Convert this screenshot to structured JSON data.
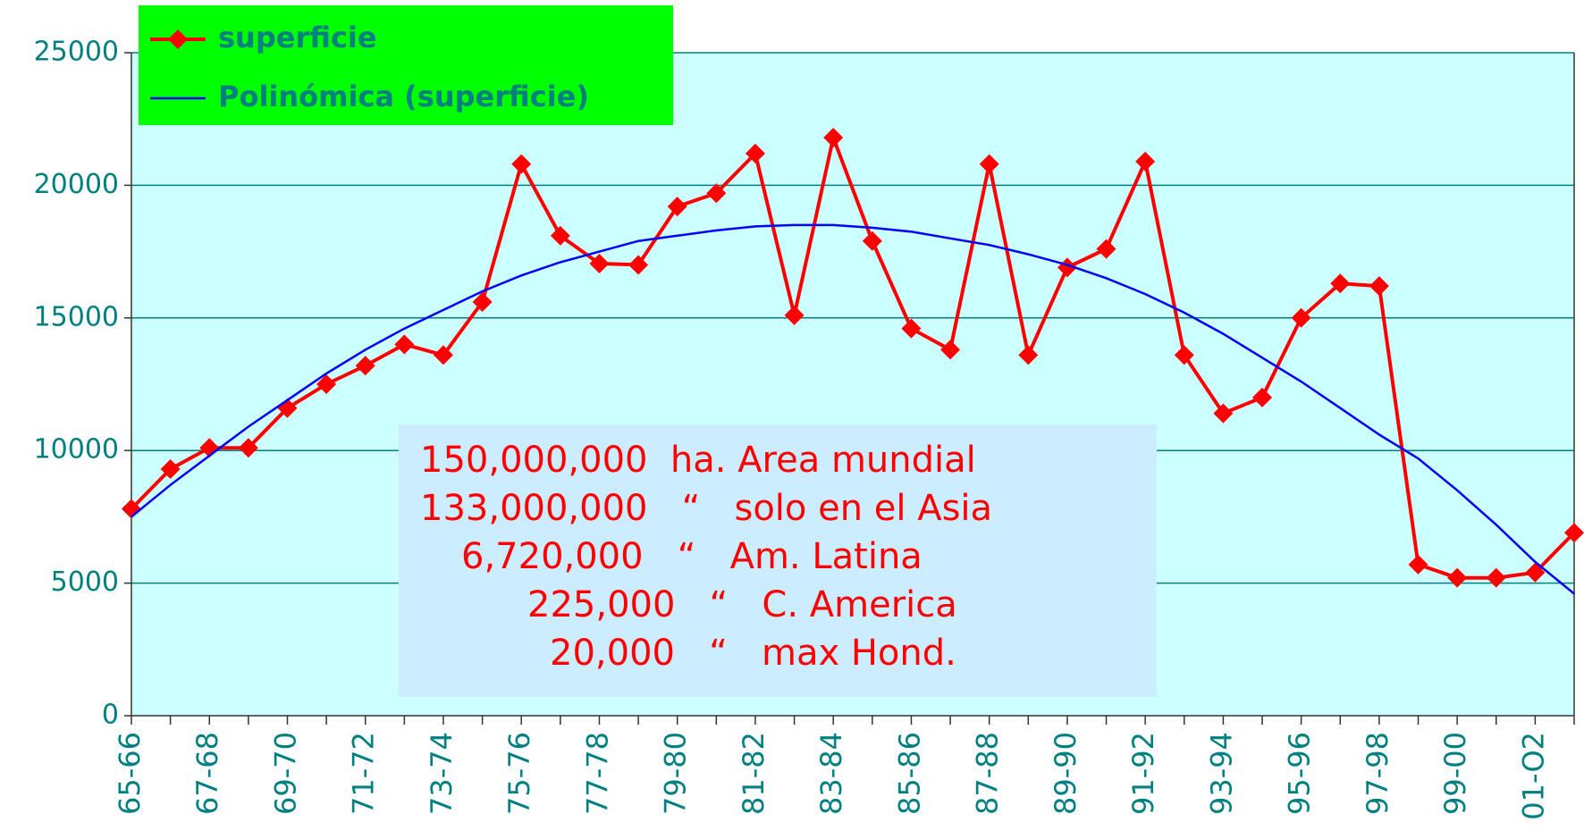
{
  "chart_data": {
    "type": "line",
    "categories": [
      "65-66",
      null,
      "67-68",
      null,
      "69-70",
      null,
      "71-72",
      null,
      "73-74",
      null,
      "75-76",
      null,
      "77-78",
      null,
      "79-80",
      null,
      "81-82",
      null,
      "83-84",
      null,
      "85-86",
      null,
      "87-88",
      null,
      "89-90",
      null,
      "91-92",
      null,
      "93-94",
      null,
      "95-96",
      null,
      "97-98",
      null,
      "99-00",
      null,
      "01-O2",
      null
    ],
    "series": [
      {
        "name": "superficie",
        "color": "#ff0000",
        "marker": "diamond",
        "values": [
          7800,
          9300,
          10100,
          10100,
          11600,
          12500,
          13200,
          14000,
          13600,
          15600,
          20800,
          18100,
          17050,
          17000,
          19200,
          19700,
          21200,
          15100,
          21800,
          17900,
          14600,
          13800,
          20800,
          13600,
          16900,
          17600,
          20900,
          13600,
          11400,
          12000,
          15000,
          16300,
          16200,
          5700,
          5200,
          5200,
          5400,
          6900
        ]
      },
      {
        "name": "Polinómica (superficie)",
        "color": "#0000ff",
        "values": [
          7500,
          8700,
          9800,
          10900,
          11900,
          12900,
          13800,
          14600,
          15300,
          16000,
          16600,
          17100,
          17500,
          17900,
          18100,
          18300,
          18450,
          18500,
          18500,
          18400,
          18250,
          18000,
          17750,
          17400,
          17000,
          16500,
          15900,
          15200,
          14400,
          13500,
          12600,
          11600,
          10600,
          9700,
          8500,
          7200,
          5800,
          4600
        ]
      }
    ],
    "ylim": [
      0,
      25000
    ],
    "yticks": [
      0,
      5000,
      10000,
      15000,
      20000,
      25000
    ],
    "grid": true,
    "annotations": [
      "150,000,000  ha. Area mundial",
      "133,000,000   “   solo en el Asia",
      "6,720,000   “   Am. Latina",
      "225,000   “   C. America",
      "20,000   “   max Hond."
    ]
  }
}
